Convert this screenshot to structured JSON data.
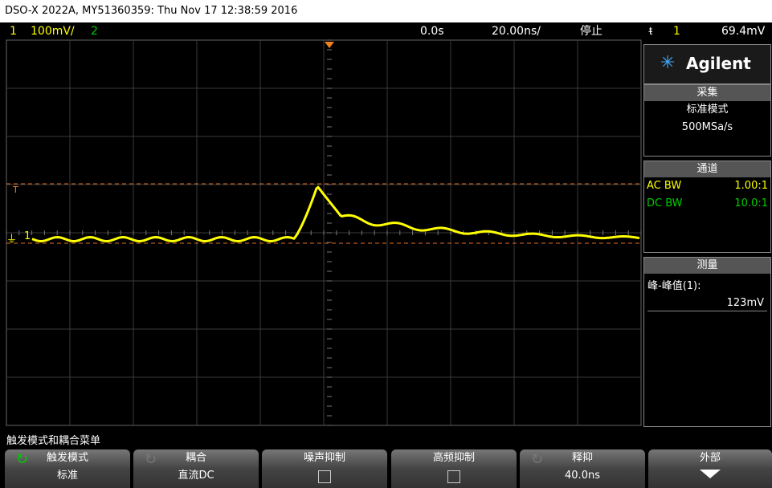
{
  "header": {
    "title": "DSO-X 2022A, MY51360359: Thu Nov 17 12:38:59 2016"
  },
  "status_bar": {
    "channel1": "1",
    "ch1_scale": "100mV/",
    "channel2": "2",
    "time_offset": "0.0s",
    "time_scale": "20.00ns/",
    "run_state": "停止",
    "trigger_source": "1",
    "trigger_level": "69.4mV"
  },
  "markers": {
    "trigger": "T",
    "channel1": "1"
  },
  "side_panel": {
    "brand": "Agilent",
    "acquisition": {
      "title": "采集",
      "mode": "标准模式",
      "rate": "500MSa/s"
    },
    "channels": {
      "title": "通道",
      "rows": [
        {
          "label": "AC BW",
          "value": "1.00:1"
        },
        {
          "label": "DC BW",
          "value": "10.0:1"
        }
      ]
    },
    "measure": {
      "title": "测量",
      "label": "峰-峰值(1):",
      "value": "123mV"
    }
  },
  "menu": {
    "title": "触发模式和耦合菜单",
    "softkeys": [
      {
        "label": "触发模式",
        "value": "标准"
      },
      {
        "label": "耦合",
        "value": "直流DC"
      },
      {
        "label": "噪声抑制"
      },
      {
        "label": "高频抑制"
      },
      {
        "label": "释抑",
        "value": "40.0ns"
      },
      {
        "label": "外部"
      }
    ]
  }
}
